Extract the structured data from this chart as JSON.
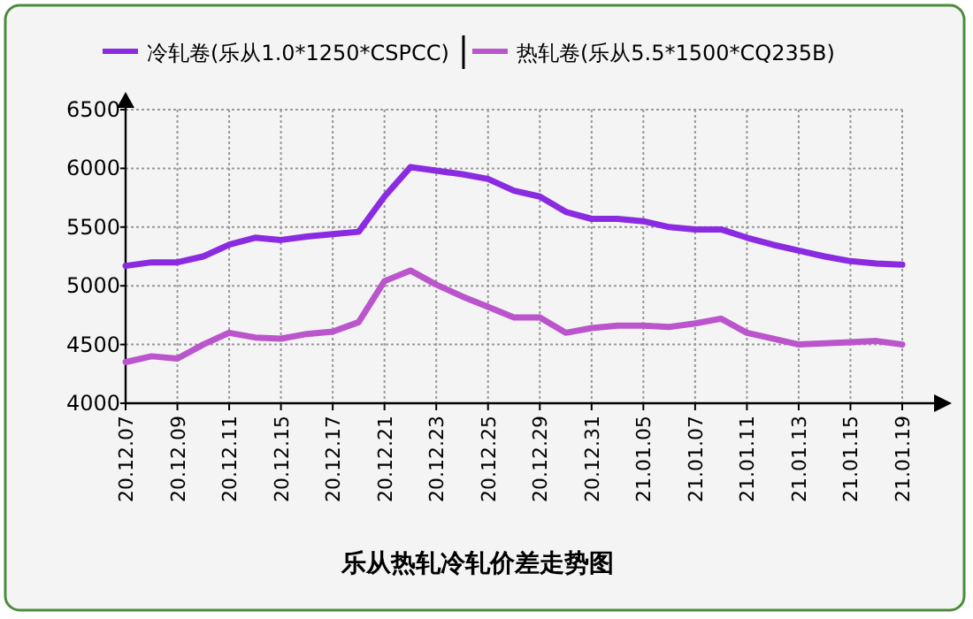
{
  "chart_data": {
    "type": "line",
    "title": "乐从热轧冷轧价差走势图",
    "categories": [
      "20.12.07",
      null,
      "20.12.09",
      null,
      "20.12.11",
      null,
      "20.12.15",
      null,
      "20.12.17",
      null,
      "20.12.21",
      null,
      "20.12.23",
      null,
      "20.12.25",
      null,
      "20.12.29",
      null,
      "20.12.31",
      null,
      "21.01.05",
      null,
      "21.01.07",
      null,
      "21.01.11",
      null,
      "21.01.13",
      null,
      "21.01.15",
      null,
      "21.01.19"
    ],
    "series": [
      {
        "name": "冷轧卷(乐从1.0*1250*CSPCC)",
        "color": "#8a2be2",
        "values": [
          5170,
          5200,
          5200,
          5250,
          5350,
          5410,
          5390,
          5420,
          5440,
          5460,
          5760,
          6010,
          5980,
          5950,
          5910,
          5810,
          5760,
          5630,
          5570,
          5570,
          5550,
          5500,
          5480,
          5480,
          5410,
          5350,
          5300,
          5250,
          5210,
          5190,
          5180
        ]
      },
      {
        "name": "热轧卷(乐从5.5*1500*CQ235B)",
        "color": "#bb55cc",
        "values": [
          4350,
          4400,
          4380,
          4500,
          4600,
          4560,
          4550,
          4590,
          4610,
          4690,
          5040,
          5130,
          5010,
          4910,
          4820,
          4730,
          4730,
          4600,
          4640,
          4660,
          4660,
          4650,
          4680,
          4720,
          4600,
          4550,
          4500,
          4510,
          4520,
          4530,
          4500
        ]
      }
    ],
    "ylim": [
      4000,
      6500
    ],
    "yticks": [
      4000,
      4500,
      5000,
      5500,
      6000,
      6500
    ],
    "grid": true,
    "legend": "top"
  }
}
